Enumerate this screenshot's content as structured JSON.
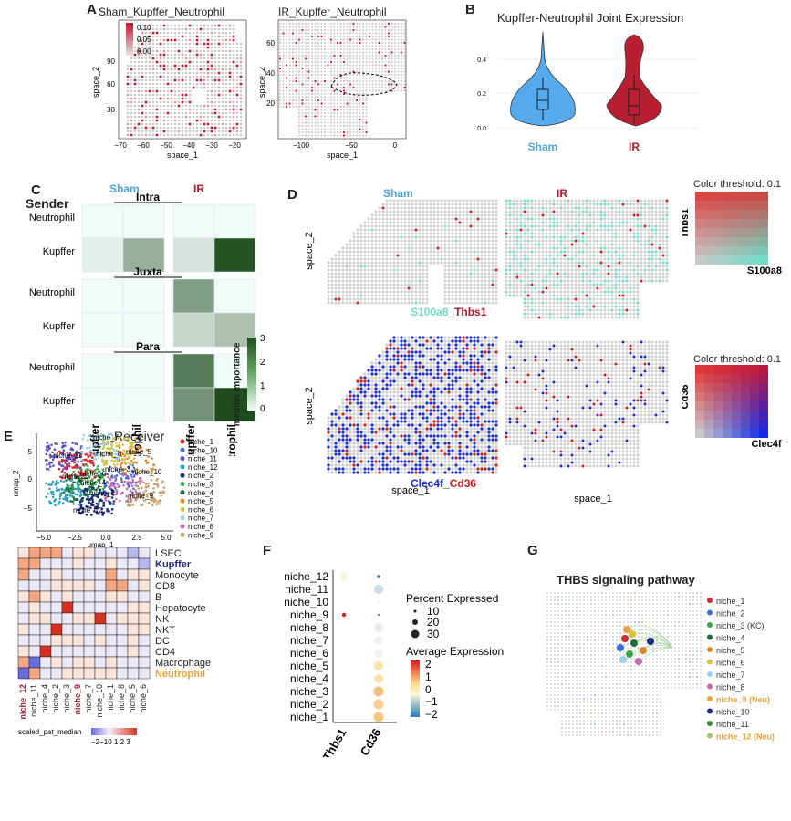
{
  "panels": {
    "A": "A",
    "B": "B",
    "C": "C",
    "D": "D",
    "E": "E",
    "F": "F",
    "G": "G"
  },
  "colors": {
    "sham": "#4aa3df",
    "ir": "#b5162b",
    "green_dark": "#1f4d1f",
    "teal": "#6fdcc8",
    "blue": "#1a2bd6",
    "red": "#d61a1a",
    "orange": "#e8a33a"
  },
  "panelA": {
    "left_title": "Sham_Kupffer_Neutrophil",
    "right_title": "IR_Kupffer_Neutrophil",
    "legend_ticks": [
      "0.10",
      "0.05",
      "0.00"
    ],
    "left_xlabel": "space_1",
    "left_ylabel": "space_2",
    "right_xlabel": "space_1",
    "right_ylabel": "space_2",
    "left_xticks": [
      "−70",
      "−60",
      "−50",
      "−40",
      "−30",
      "−20"
    ],
    "left_yticks": [
      "90",
      "60",
      "30"
    ],
    "right_xticks": [
      "−100",
      "−50",
      "0"
    ],
    "right_yticks": [
      "60",
      "40",
      "20"
    ]
  },
  "chart_data": {
    "type": "violin",
    "title": "Kupffer-Neutrophil Joint Expression",
    "categories": [
      "Sham",
      "IR"
    ],
    "yticks": [
      "0.4",
      "0.2",
      "0.0"
    ],
    "ylim": [
      0,
      0.5
    ],
    "median": [
      0.16,
      0.11
    ],
    "colors": [
      "#55aaee",
      "#b81f30"
    ]
  },
  "panelC": {
    "sender_label": "Sender",
    "sham_label": "Sham",
    "ir_label": "IR",
    "sections": [
      "Intra",
      "Juxta",
      "Para"
    ],
    "row_labels": [
      "Neutrophil",
      "Kupffer"
    ],
    "col_labels": [
      "Kupffer",
      "Neutrophil",
      "Kupffer",
      "Neutrophil"
    ],
    "receiver_label": "Receiver",
    "colorbar_title": "median importance",
    "colorbar_ticks": [
      "3",
      "2",
      "1",
      "0"
    ],
    "values": {
      "Intra": [
        [
          0,
          0,
          0,
          0
        ],
        [
          0.2,
          1.3,
          0.4,
          2.9
        ]
      ],
      "Juxta": [
        [
          0,
          0,
          1.6,
          0
        ],
        [
          0,
          0,
          0.6,
          1.0
        ]
      ],
      "Para": [
        [
          0,
          0,
          2.2,
          0
        ],
        [
          0,
          0,
          1.8,
          3.0
        ]
      ]
    }
  },
  "panelD": {
    "sham_label": "Sham",
    "ir_label": "IR",
    "ylabel_top": "space_2",
    "ylabel_bottom": "space_2",
    "xlabel_left": "space_1",
    "xlabel_right": "space_1",
    "gene_a1": "S100a8",
    "gene_sep": "_",
    "gene_b1": "Thbs1",
    "gene_a2": "Clec4f",
    "gene_b2": "Cd36",
    "threshold1": "Color threshold: 0.1",
    "legend1_y": "Thbs1",
    "legend1_x": "S100a8",
    "threshold2": "Color threshold: 0.1",
    "legend2_y": "Cd36",
    "legend2_x": "Clec4f"
  },
  "panelE": {
    "niches": [
      "niche_1",
      "niche_10",
      "niche_11",
      "niche_12",
      "niche_2",
      "niche_3",
      "niche_4",
      "niche_5",
      "niche_6",
      "niche_7",
      "niche_8",
      "niche_9"
    ],
    "niche_colors": [
      "#d62728",
      "#3a6fd8",
      "#5b4fc4",
      "#2aa0c8",
      "#1a2b80",
      "#3aa84a",
      "#1f6e3a",
      "#e0862a",
      "#d8c23a",
      "#9ad0e8",
      "#c06ab8",
      "#c8a06a"
    ],
    "umap_xlabel": "umap_1",
    "umap_ylabel": "umap_2",
    "umap_xticks": [
      "−5.0",
      "−2.5",
      "0.0",
      "2.5",
      "5.0"
    ],
    "umap_yticks": [
      "5",
      "0",
      "−5"
    ],
    "umap_labels": [
      "niche_7",
      "niche_11",
      "niche_6",
      "niche_5",
      "niche_1",
      "niche_3",
      "niche_10",
      "niche_4",
      "niche_2",
      "niche_9",
      "niche_8",
      "niche_12"
    ],
    "heat_rows": [
      "LSEC",
      "Kupffer",
      "Monocyte",
      "CD8",
      "B",
      "Hepatocyte",
      "NK",
      "NKT",
      "DC",
      "CD4",
      "Macrophage",
      "Neutrophil"
    ],
    "heat_cols": [
      "niche_12",
      "niche_11",
      "niche_4",
      "niche_2",
      "niche_3",
      "niche_9",
      "niche_7",
      "niche_10",
      "niche_1",
      "niche_8",
      "niche_5",
      "niche_6"
    ],
    "heat_legend_label": "scaled_pat_median",
    "heat_legend_ticks": "−2−10 1 2 3"
  },
  "panelF": {
    "rows": [
      "niche_12",
      "niche_11",
      "niche_10",
      "niche_9",
      "niche_8",
      "niche_7",
      "niche_6",
      "niche_5",
      "niche_4",
      "niche_3",
      "niche_2",
      "niche_1"
    ],
    "cols": [
      "Thbs1",
      "Cd36"
    ],
    "pct_title": "Percent Expressed",
    "pct_ticks": [
      "10",
      "20",
      "30"
    ],
    "avg_title": "Average Expression",
    "avg_ticks": [
      "2",
      "1",
      "0",
      "−1",
      "−2"
    ]
  },
  "panelG": {
    "title": "THBS signaling pathway",
    "legend": [
      "niche_1",
      "niche_2",
      "niche_3 (KC)",
      "niche_4",
      "niche_5",
      "niche_6",
      "niche_7",
      "niche_8",
      "niche_9 (Neu)",
      "niche_10",
      "niche_11",
      "niche_12 (Neu)"
    ],
    "legend_colors": [
      "#d62728",
      "#3a6fd8",
      "#3aa84a",
      "#1f6e3a",
      "#e0862a",
      "#d8c23a",
      "#9ad0e8",
      "#c06ab8",
      "#e8a33a",
      "#1a2b80",
      "#3a8a3a",
      "#a0c86a"
    ]
  }
}
